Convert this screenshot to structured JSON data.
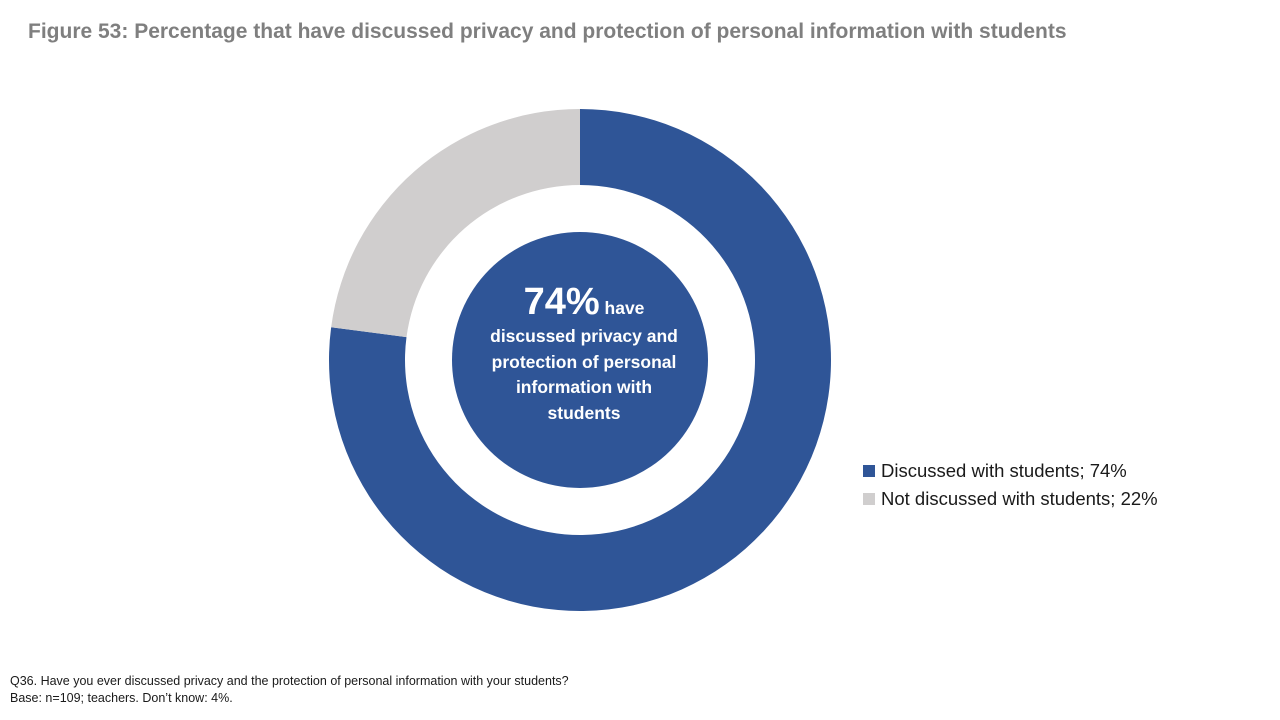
{
  "title": "Figure 53: Percentage that have discussed privacy and protection of personal information with students",
  "center_label": {
    "percent": "74%",
    "text_line1": "have",
    "text_rest": "discussed privacy and protection of personal information with students"
  },
  "colors": {
    "discussed": "#2f5597",
    "not_discussed": "#d0cece"
  },
  "chart_data": {
    "type": "pie",
    "variant": "donut",
    "title": "Figure 53: Percentage that have discussed privacy and protection of personal information with students",
    "series": [
      {
        "name": "",
        "values": [
          74,
          22
        ]
      }
    ],
    "categories": [
      "Discussed with students",
      "Not discussed with students"
    ],
    "legend_labels": [
      "Discussed with students; 74%",
      "Not discussed with students; 22%"
    ],
    "legend_position": "right",
    "units": "%"
  },
  "footnote": {
    "line1": "Q36. Have you ever discussed privacy and the protection of personal information with your students?",
    "line2": "Base: n=109; teachers. Don’t know: 4%."
  }
}
